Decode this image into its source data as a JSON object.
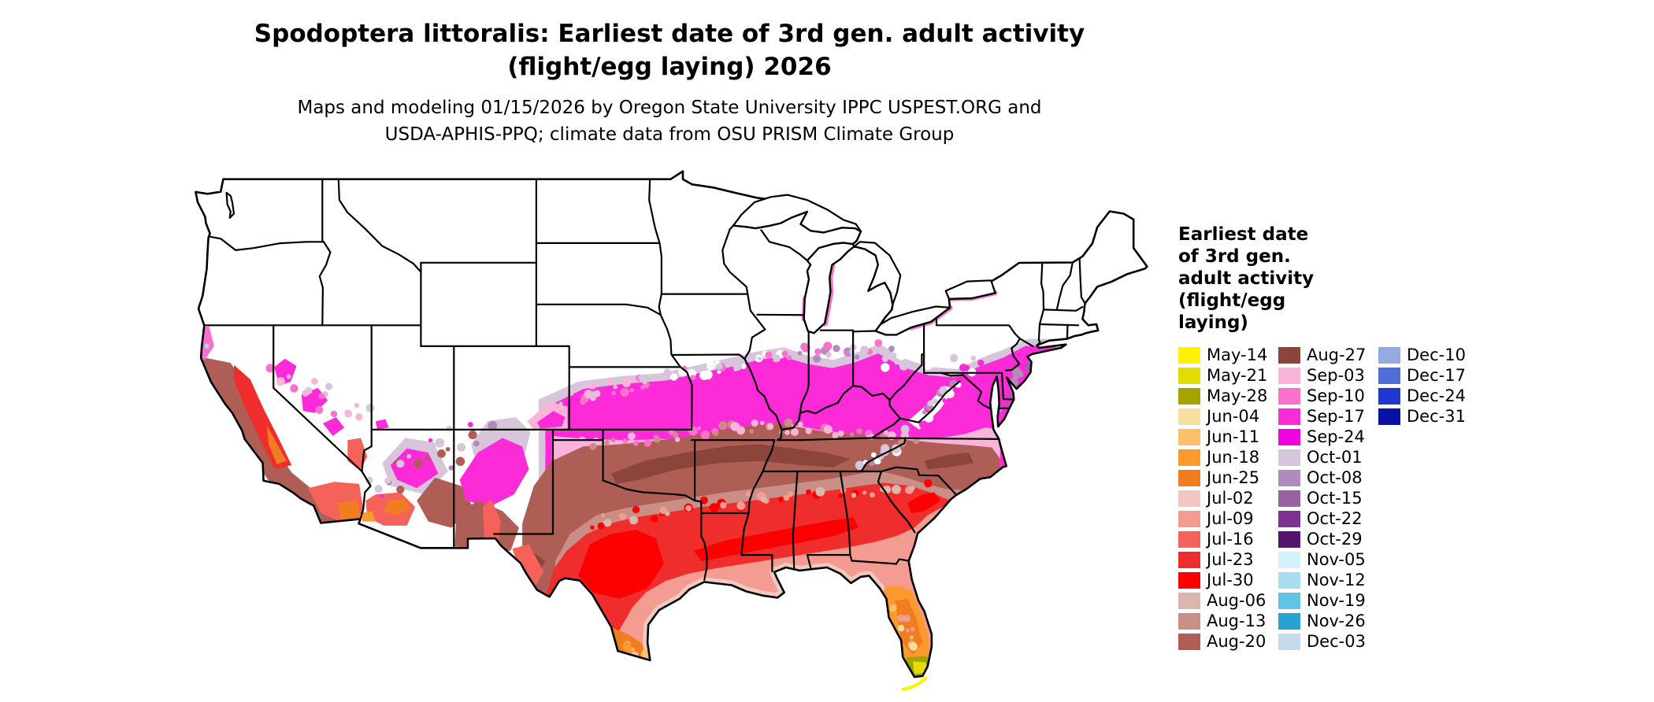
{
  "title": {
    "line1": "Spodoptera littoralis: Earliest date of 3rd gen. adult activity",
    "line2": "(flight/egg laying) 2026"
  },
  "subtitle": {
    "line1": "Maps and modeling 01/15/2026 by Oregon State University IPPC USPEST.ORG and",
    "line2": "USDA-APHIS-PPQ; climate data from OSU PRISM Climate Group"
  },
  "legend": {
    "title_lines": [
      "Earliest date",
      "of 3rd gen.",
      "adult activity",
      "(flight/egg",
      "laying)"
    ],
    "columns": [
      [
        {
          "label": "May-14",
          "color": "#FFF200"
        },
        {
          "label": "May-21",
          "color": "#E3DC00"
        },
        {
          "label": "May-28",
          "color": "#A4A400"
        },
        {
          "label": "Jun-04",
          "color": "#F8DFA0"
        },
        {
          "label": "Jun-11",
          "color": "#FDC06A"
        },
        {
          "label": "Jun-18",
          "color": "#FD9A2E"
        },
        {
          "label": "Jun-25",
          "color": "#F07E21"
        },
        {
          "label": "Jul-02",
          "color": "#F2C8C0"
        },
        {
          "label": "Jul-09",
          "color": "#F49B92"
        },
        {
          "label": "Jul-16",
          "color": "#F5625A"
        },
        {
          "label": "Jul-23",
          "color": "#EF2D2D"
        },
        {
          "label": "Jul-30",
          "color": "#FD0000"
        },
        {
          "label": "Aug-06",
          "color": "#DAB6AC"
        },
        {
          "label": "Aug-13",
          "color": "#C98E85"
        },
        {
          "label": "Aug-20",
          "color": "#AE5E55"
        }
      ],
      [
        {
          "label": "Aug-27",
          "color": "#8B453C"
        },
        {
          "label": "Sep-03",
          "color": "#FAB3D9"
        },
        {
          "label": "Sep-10",
          "color": "#FB71CE"
        },
        {
          "label": "Sep-17",
          "color": "#FD2AD8"
        },
        {
          "label": "Sep-24",
          "color": "#EE03E0"
        },
        {
          "label": "Oct-01",
          "color": "#D7C6DB"
        },
        {
          "label": "Oct-08",
          "color": "#B08CBC"
        },
        {
          "label": "Oct-15",
          "color": "#99619F"
        },
        {
          "label": "Oct-22",
          "color": "#7D3192"
        },
        {
          "label": "Oct-29",
          "color": "#551470"
        },
        {
          "label": "Nov-05",
          "color": "#D5F1FC"
        },
        {
          "label": "Nov-12",
          "color": "#A6DDF1"
        },
        {
          "label": "Nov-19",
          "color": "#63C3E5"
        },
        {
          "label": "Nov-26",
          "color": "#2AA1D3"
        },
        {
          "label": "Dec-03",
          "color": "#C4DAEE"
        }
      ],
      [
        {
          "label": "Dec-10",
          "color": "#93ABDF"
        },
        {
          "label": "Dec-17",
          "color": "#4F6ED7"
        },
        {
          "label": "Dec-24",
          "color": "#2038CE"
        },
        {
          "label": "Dec-31",
          "color": "#0A12A6"
        }
      ]
    ]
  },
  "map": {
    "land_color": "#FFFFFF",
    "border_color": "#000000",
    "water_color": "#FFFFFF"
  }
}
